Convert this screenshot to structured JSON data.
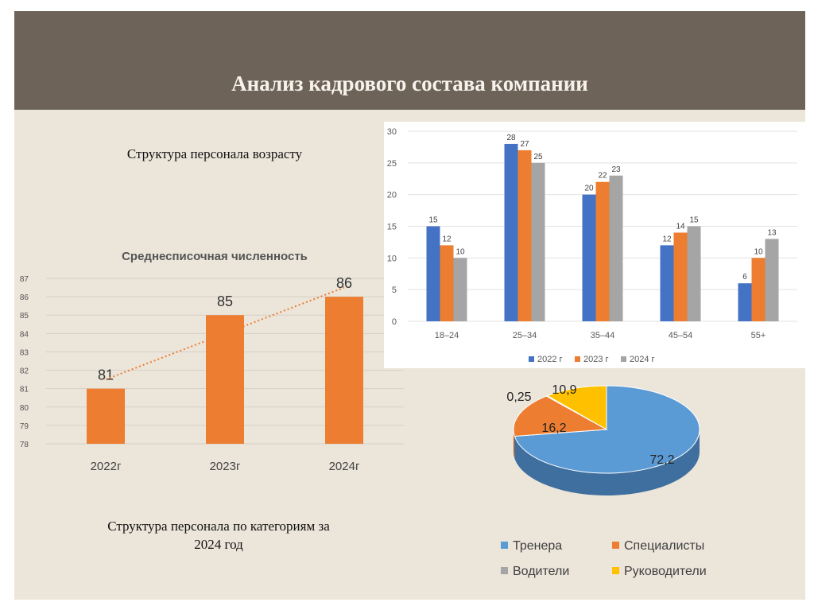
{
  "slide": {
    "title": "Анализ кадрового состава компании"
  },
  "captions": {
    "age_structure": "Структура персонала возрасту",
    "category_structure_line1": "Структура персонала по категориям за",
    "category_structure_line2": "2024 год"
  },
  "colors": {
    "header": "#6e6358",
    "background": "#ebe5da",
    "blue": "#4472c4",
    "orange": "#ed7d31",
    "gray": "#a5a5a5",
    "yellow": "#ffc000",
    "pie_blue": "#5b9bd5"
  },
  "chart_data": [
    {
      "type": "bar",
      "title": "Среднесписочная численность",
      "categories": [
        "2022г",
        "2023г",
        "2024г"
      ],
      "values": [
        81,
        85,
        86
      ],
      "ylim": [
        78,
        87
      ],
      "yticks": [
        78,
        79,
        80,
        81,
        82,
        83,
        84,
        85,
        86,
        87
      ],
      "trendline": "linear dotted",
      "grid": true
    },
    {
      "type": "bar",
      "categories": [
        "18–24",
        "25–34",
        "35–44",
        "45–54",
        "55+"
      ],
      "series": [
        {
          "name": "2022 г",
          "values": [
            15,
            28,
            20,
            12,
            6
          ]
        },
        {
          "name": "2023 г",
          "values": [
            12,
            27,
            22,
            14,
            10
          ]
        },
        {
          "name": "2024 г",
          "values": [
            10,
            25,
            23,
            15,
            13
          ]
        }
      ],
      "ylim": [
        0,
        30
      ],
      "yticks": [
        0,
        5,
        10,
        15,
        20,
        25,
        30
      ],
      "legend": "bottom",
      "grid": true
    },
    {
      "type": "pie",
      "labels": [
        "Тренера",
        "Специалисты",
        "Водители",
        "Руководители"
      ],
      "values": [
        72.2,
        16.2,
        0.25,
        10.9
      ],
      "value_labels": [
        "72,2",
        "16,2",
        "0,25",
        "10,9"
      ],
      "legend": "bottom",
      "style": "3d"
    }
  ]
}
